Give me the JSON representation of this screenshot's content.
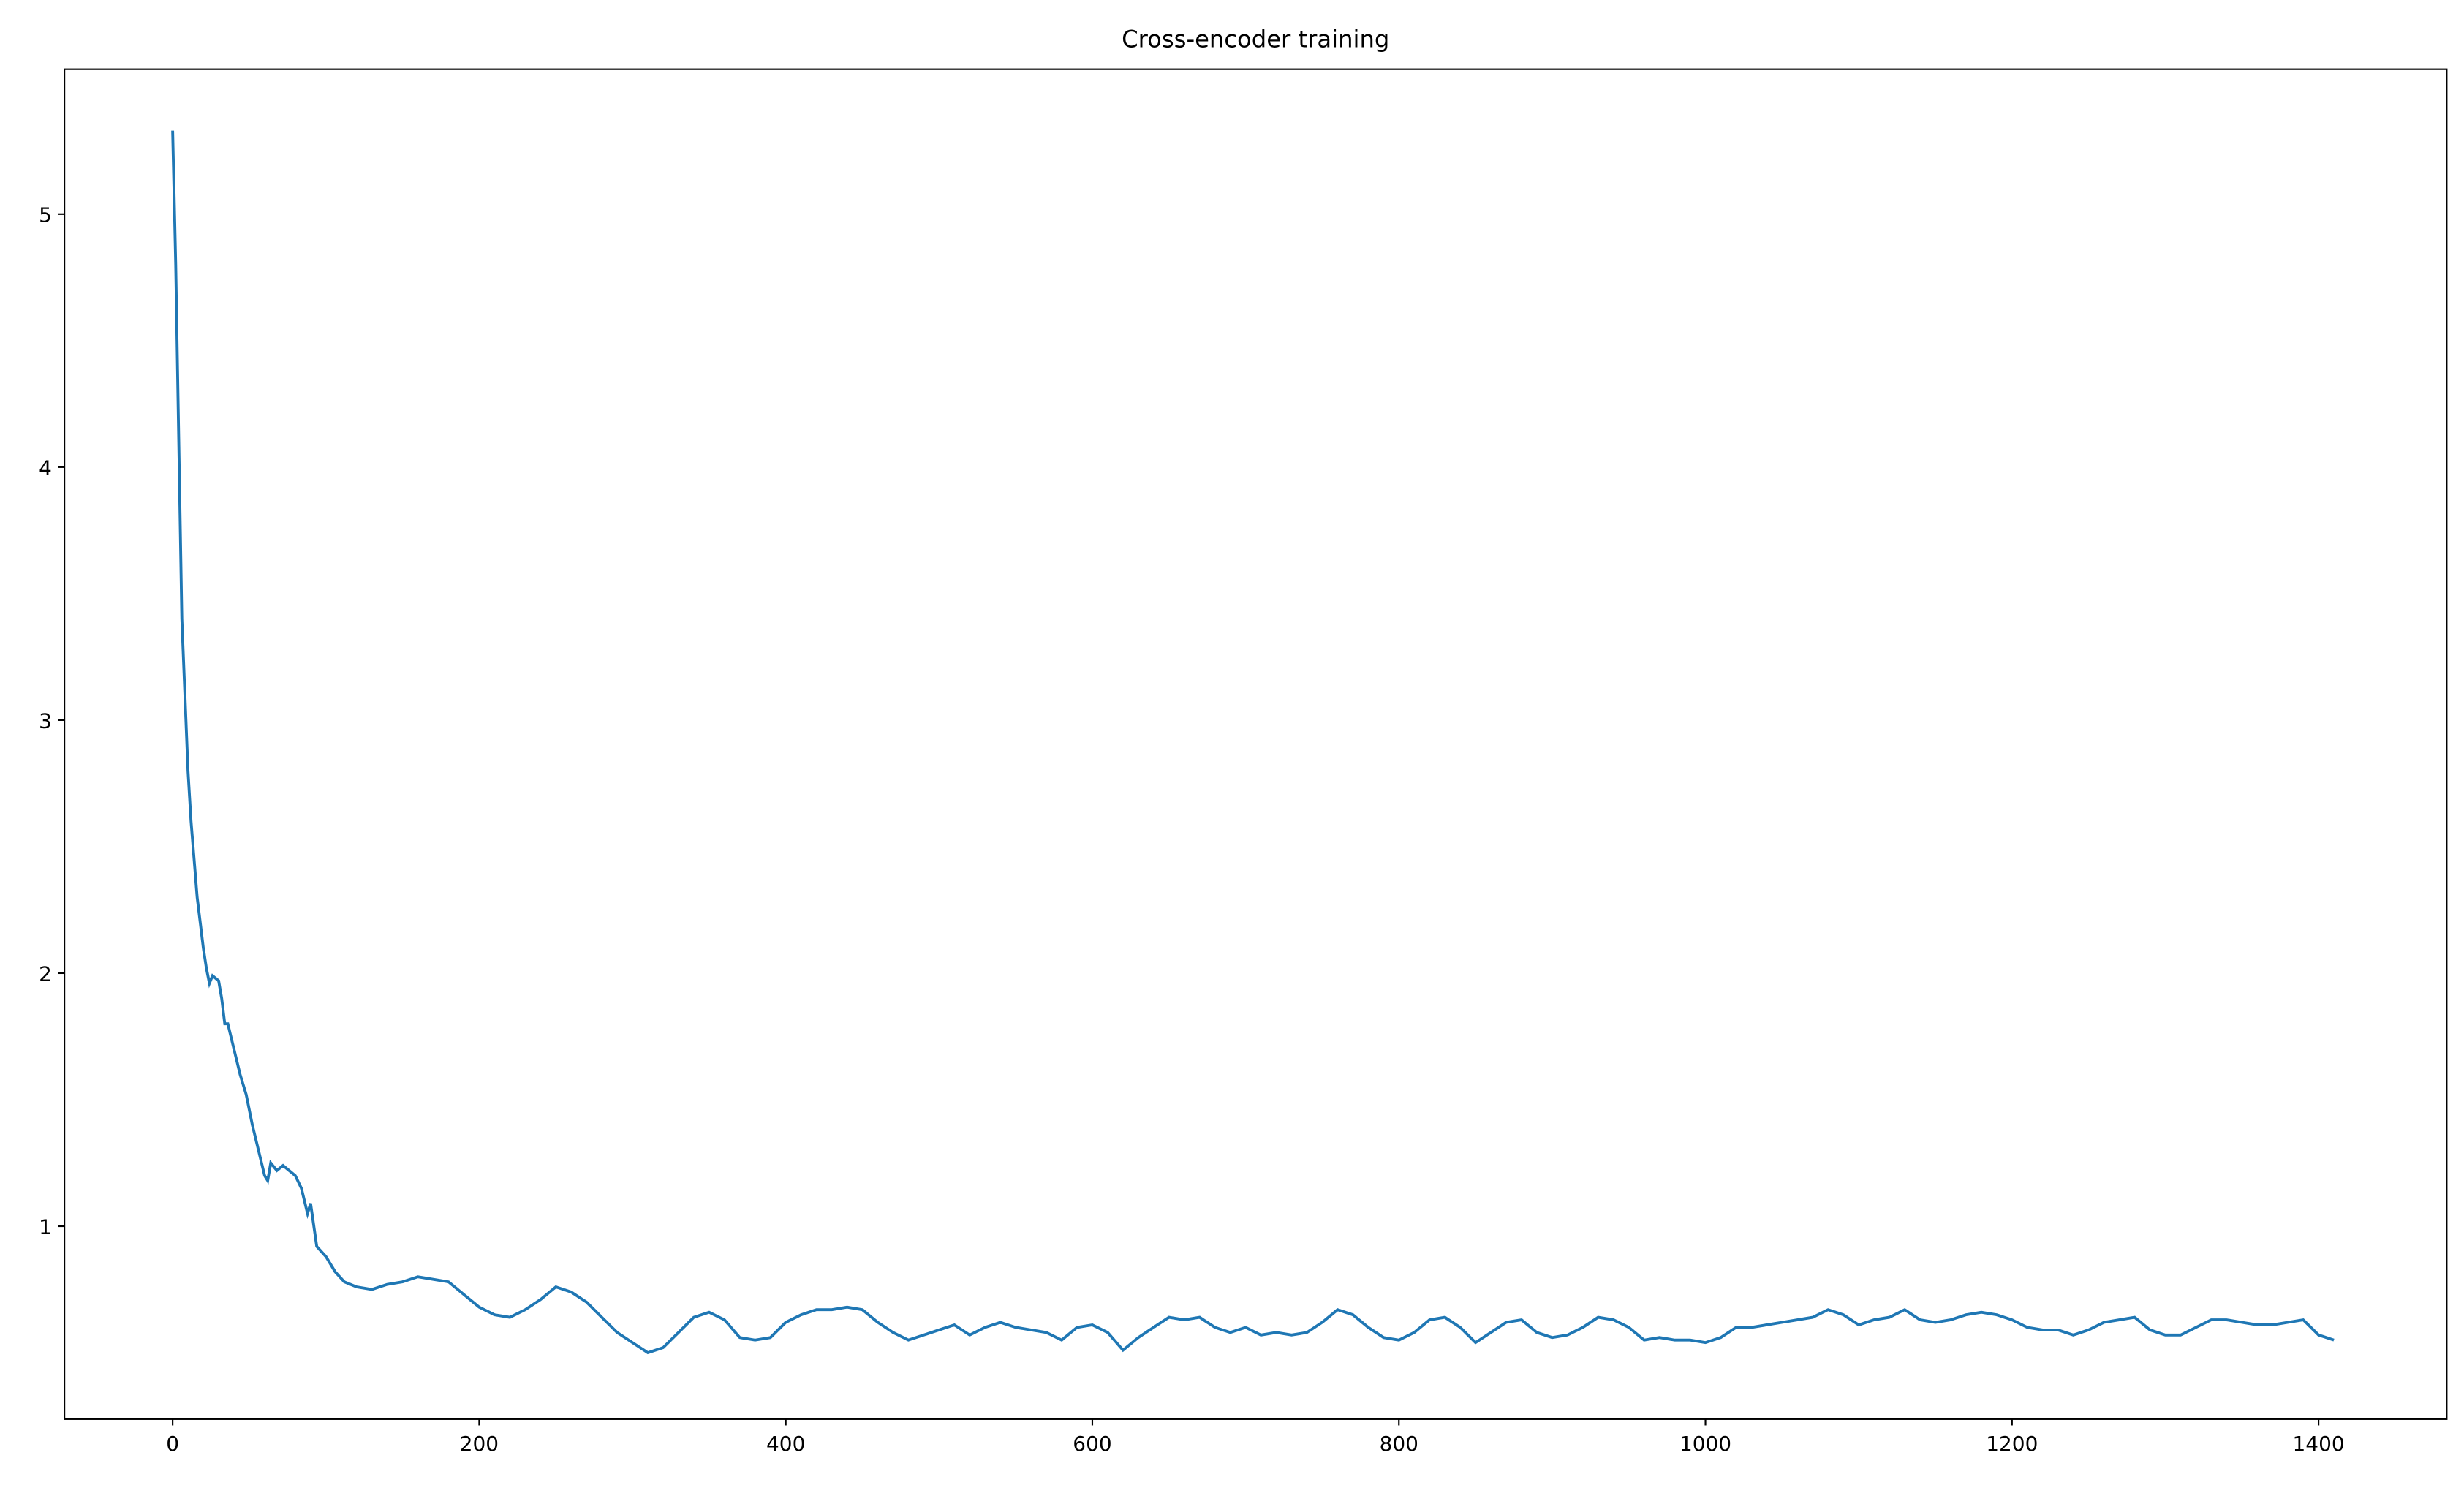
{
  "chart_data": {
    "type": "line",
    "title": "Cross-encoder training",
    "x": [
      0,
      2,
      4,
      6,
      8,
      10,
      12,
      14,
      16,
      18,
      20,
      22,
      24,
      26,
      30,
      32,
      34,
      36,
      40,
      44,
      48,
      52,
      56,
      60,
      62,
      64,
      68,
      72,
      76,
      80,
      84,
      88,
      90,
      94,
      100,
      106,
      112,
      120,
      130,
      140,
      150,
      160,
      170,
      180,
      190,
      200,
      210,
      220,
      230,
      240,
      250,
      260,
      270,
      280,
      290,
      300,
      310,
      320,
      330,
      340,
      350,
      360,
      370,
      380,
      390,
      400,
      410,
      420,
      430,
      440,
      450,
      460,
      470,
      480,
      490,
      500,
      510,
      520,
      530,
      540,
      550,
      560,
      570,
      580,
      590,
      600,
      610,
      620,
      630,
      640,
      650,
      660,
      670,
      680,
      690,
      700,
      710,
      720,
      730,
      740,
      750,
      760,
      770,
      780,
      790,
      800,
      810,
      820,
      830,
      840,
      850,
      860,
      870,
      880,
      890,
      900,
      910,
      920,
      930,
      940,
      950,
      960,
      970,
      980,
      990,
      1000,
      1010,
      1020,
      1030,
      1040,
      1050,
      1060,
      1070,
      1080,
      1090,
      1100,
      1110,
      1120,
      1130,
      1140,
      1150,
      1160,
      1170,
      1180,
      1190,
      1200,
      1210,
      1220,
      1230,
      1240,
      1250,
      1260,
      1270,
      1280,
      1290,
      1300,
      1310,
      1320,
      1330,
      1340,
      1350,
      1360,
      1370,
      1380,
      1390,
      1400,
      1410
    ],
    "series": [
      {
        "color": "#1f77b4",
        "values": [
          5.33,
          4.8,
          4.1,
          3.4,
          3.1,
          2.8,
          2.6,
          2.45,
          2.3,
          2.2,
          2.1,
          2.02,
          1.96,
          1.99,
          1.97,
          1.9,
          1.8,
          1.8,
          1.7,
          1.6,
          1.52,
          1.4,
          1.3,
          1.2,
          1.18,
          1.25,
          1.22,
          1.24,
          1.22,
          1.2,
          1.15,
          1.05,
          1.09,
          0.92,
          0.88,
          0.82,
          0.78,
          0.76,
          0.75,
          0.77,
          0.78,
          0.8,
          0.79,
          0.78,
          0.73,
          0.68,
          0.65,
          0.64,
          0.67,
          0.71,
          0.76,
          0.74,
          0.7,
          0.64,
          0.58,
          0.54,
          0.5,
          0.52,
          0.58,
          0.64,
          0.66,
          0.63,
          0.56,
          0.55,
          0.56,
          0.62,
          0.65,
          0.67,
          0.67,
          0.68,
          0.67,
          0.62,
          0.58,
          0.55,
          0.57,
          0.59,
          0.61,
          0.57,
          0.6,
          0.62,
          0.6,
          0.59,
          0.58,
          0.55,
          0.6,
          0.61,
          0.58,
          0.51,
          0.56,
          0.6,
          0.64,
          0.63,
          0.64,
          0.6,
          0.58,
          0.6,
          0.57,
          0.58,
          0.57,
          0.58,
          0.62,
          0.67,
          0.65,
          0.6,
          0.56,
          0.55,
          0.58,
          0.63,
          0.64,
          0.6,
          0.54,
          0.58,
          0.62,
          0.63,
          0.58,
          0.56,
          0.57,
          0.6,
          0.64,
          0.63,
          0.6,
          0.55,
          0.56,
          0.55,
          0.55,
          0.54,
          0.56,
          0.6,
          0.6,
          0.61,
          0.62,
          0.63,
          0.64,
          0.67,
          0.65,
          0.61,
          0.63,
          0.64,
          0.67,
          0.63,
          0.62,
          0.63,
          0.65,
          0.66,
          0.65,
          0.63,
          0.6,
          0.59,
          0.59,
          0.57,
          0.59,
          0.62,
          0.63,
          0.64,
          0.59,
          0.57,
          0.57,
          0.6,
          0.63,
          0.63,
          0.62,
          0.61,
          0.61,
          0.62,
          0.63,
          0.57,
          0.55
        ]
      }
    ],
    "xlim": [
      -70.6,
      1483.6
    ],
    "xticks": [
      0,
      200,
      400,
      600,
      800,
      1000,
      1200,
      1400
    ],
    "ylim": [
      0.2375,
      5.5725
    ],
    "yticks": [
      1,
      2,
      3,
      4,
      5
    ]
  }
}
